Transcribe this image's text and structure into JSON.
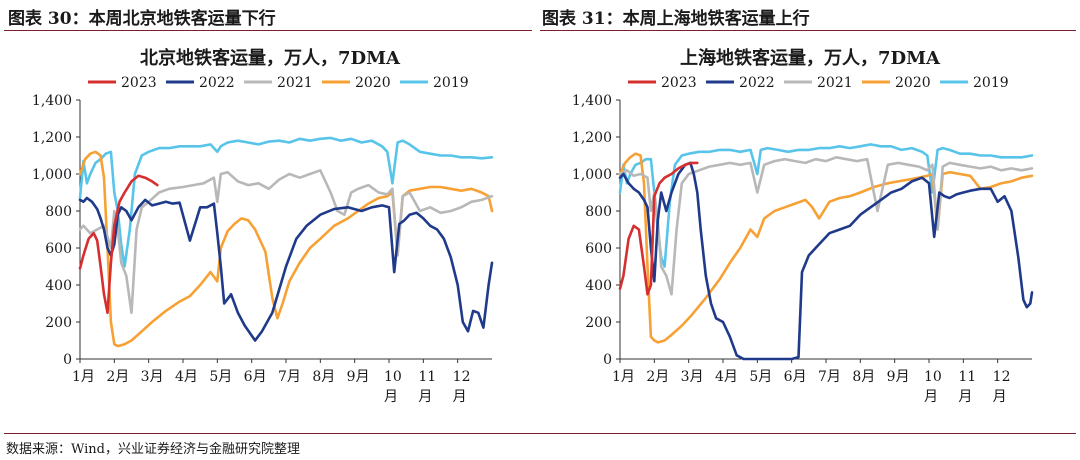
{
  "figures": {
    "left_label": "图表 30：本周北京地铁客运量下行",
    "right_label": "图表 31：本周上海地铁客运量上行"
  },
  "source": "数据来源：Wind，兴业证券经济与金融研究院整理",
  "chart_data": [
    {
      "type": "line",
      "title": "北京地铁客运量，万人，7DMA",
      "ylim": [
        0,
        1400
      ],
      "yticks": [
        0,
        200,
        400,
        600,
        800,
        1000,
        1200,
        1400
      ],
      "ytick_labels": [
        "0",
        "200",
        "400",
        "600",
        "800",
        "1,000",
        "1,200",
        "1,400"
      ],
      "xlim": [
        1,
        13
      ],
      "xticks": [
        1,
        2,
        3,
        4,
        5,
        6,
        7,
        8,
        9,
        10,
        11,
        12
      ],
      "xtick_labels": [
        "1月",
        "2月",
        "3月",
        "4月",
        "5月",
        "6月",
        "7月",
        "8月",
        "9月",
        "10\n月",
        "11\n月",
        "12\n月"
      ],
      "legend": "top",
      "series": [
        {
          "name": "2023",
          "color": "#d62f2f",
          "x": [
            1.0,
            1.1,
            1.25,
            1.4,
            1.5,
            1.6,
            1.7,
            1.8,
            1.9,
            2.0,
            2.15,
            2.3,
            2.5,
            2.7,
            2.9,
            3.1,
            3.25
          ],
          "y": [
            490,
            560,
            650,
            680,
            640,
            500,
            350,
            250,
            520,
            720,
            850,
            900,
            960,
            990,
            980,
            960,
            940
          ]
        },
        {
          "name": "2022",
          "color": "#1f3a8a",
          "x": [
            1.0,
            1.1,
            1.2,
            1.35,
            1.5,
            1.6,
            1.7,
            1.8,
            1.9,
            2.0,
            2.1,
            2.2,
            2.35,
            2.5,
            2.7,
            2.9,
            3.1,
            3.3,
            3.5,
            3.7,
            3.9,
            4.2,
            4.5,
            4.7,
            4.9,
            5.0,
            5.1,
            5.2,
            5.4,
            5.6,
            5.8,
            5.95,
            6.1,
            6.3,
            6.6,
            7.0,
            7.3,
            7.6,
            8.0,
            8.4,
            8.8,
            9.2,
            9.5,
            9.8,
            10.0,
            10.15,
            10.3,
            10.45,
            10.6,
            10.8,
            11.0,
            11.2,
            11.4,
            11.6,
            11.8,
            12.0,
            12.15,
            12.3,
            12.45,
            12.6,
            12.75,
            12.9,
            13.0
          ],
          "y": [
            860,
            850,
            870,
            850,
            810,
            760,
            700,
            600,
            560,
            620,
            780,
            820,
            800,
            750,
            820,
            860,
            830,
            840,
            850,
            840,
            845,
            640,
            820,
            820,
            840,
            680,
            500,
            300,
            350,
            250,
            180,
            140,
            100,
            150,
            250,
            500,
            650,
            720,
            780,
            810,
            820,
            800,
            820,
            830,
            820,
            470,
            730,
            750,
            780,
            790,
            760,
            720,
            700,
            650,
            550,
            400,
            200,
            150,
            260,
            250,
            170,
            400,
            520
          ]
        },
        {
          "name": "2021",
          "color": "#b8b8b8",
          "x": [
            1.0,
            1.1,
            1.3,
            1.5,
            1.7,
            1.9,
            2.0,
            2.1,
            2.2,
            2.35,
            2.5,
            2.65,
            2.8,
            3.0,
            3.3,
            3.6,
            4.0,
            4.3,
            4.6,
            4.9,
            5.0,
            5.1,
            5.3,
            5.6,
            5.9,
            6.2,
            6.5,
            6.8,
            7.1,
            7.4,
            7.7,
            8.0,
            8.3,
            8.5,
            8.7,
            8.9,
            9.1,
            9.4,
            9.7,
            9.95,
            10.1,
            10.25,
            10.4,
            10.6,
            10.9,
            11.2,
            11.5,
            11.8,
            12.1,
            12.4,
            12.7,
            13.0
          ],
          "y": [
            700,
            720,
            680,
            700,
            720,
            600,
            800,
            700,
            520,
            450,
            250,
            700,
            820,
            850,
            900,
            920,
            930,
            940,
            950,
            980,
            850,
            1000,
            1010,
            960,
            940,
            950,
            920,
            970,
            1000,
            980,
            1000,
            1020,
            900,
            800,
            780,
            900,
            920,
            940,
            900,
            890,
            920,
            560,
            880,
            900,
            800,
            820,
            790,
            800,
            820,
            850,
            860,
            880
          ]
        },
        {
          "name": "2020",
          "color": "#f7a134",
          "x": [
            1.0,
            1.15,
            1.3,
            1.45,
            1.6,
            1.7,
            1.8,
            1.9,
            2.0,
            2.1,
            2.3,
            2.5,
            2.8,
            3.1,
            3.5,
            3.9,
            4.2,
            4.5,
            4.8,
            5.0,
            5.1,
            5.3,
            5.5,
            5.7,
            5.9,
            6.1,
            6.4,
            6.6,
            6.75,
            6.9,
            7.1,
            7.4,
            7.7,
            8.0,
            8.4,
            8.8,
            9.1,
            9.4,
            9.7,
            9.95,
            10.1,
            10.25,
            10.4,
            10.6,
            10.9,
            11.2,
            11.5,
            11.8,
            12.1,
            12.4,
            12.7,
            12.9,
            13.0
          ],
          "y": [
            1000,
            1080,
            1110,
            1120,
            1100,
            980,
            600,
            200,
            80,
            70,
            80,
            100,
            150,
            200,
            260,
            310,
            340,
            400,
            470,
            420,
            600,
            690,
            730,
            760,
            750,
            700,
            580,
            330,
            220,
            300,
            420,
            520,
            600,
            650,
            720,
            760,
            800,
            840,
            870,
            880,
            900,
            570,
            880,
            910,
            920,
            930,
            930,
            920,
            910,
            920,
            900,
            880,
            800
          ]
        },
        {
          "name": "2019",
          "color": "#58c4ea",
          "x": [
            1.0,
            1.1,
            1.2,
            1.3,
            1.45,
            1.6,
            1.75,
            1.9,
            2.0,
            2.1,
            2.2,
            2.3,
            2.45,
            2.6,
            2.8,
            3.0,
            3.3,
            3.6,
            3.9,
            4.2,
            4.5,
            4.8,
            5.0,
            5.1,
            5.3,
            5.6,
            5.9,
            6.2,
            6.5,
            6.8,
            7.1,
            7.4,
            7.7,
            8.0,
            8.3,
            8.6,
            8.9,
            9.2,
            9.5,
            9.8,
            9.95,
            10.1,
            10.25,
            10.4,
            10.6,
            10.9,
            11.2,
            11.5,
            11.8,
            12.1,
            12.4,
            12.7,
            13.0
          ],
          "y": [
            870,
            1070,
            950,
            1000,
            1060,
            1080,
            1110,
            1120,
            900,
            800,
            620,
            500,
            700,
            1000,
            1100,
            1120,
            1140,
            1140,
            1150,
            1150,
            1150,
            1160,
            1120,
            1150,
            1170,
            1180,
            1170,
            1160,
            1175,
            1180,
            1170,
            1190,
            1180,
            1190,
            1195,
            1180,
            1190,
            1170,
            1180,
            1150,
            1120,
            950,
            1170,
            1180,
            1160,
            1120,
            1110,
            1100,
            1100,
            1090,
            1090,
            1085,
            1090
          ]
        }
      ]
    },
    {
      "type": "line",
      "title": "上海地铁客运量，万人，7DMA",
      "ylim": [
        0,
        1400
      ],
      "yticks": [
        0,
        200,
        400,
        600,
        800,
        1000,
        1200,
        1400
      ],
      "ytick_labels": [
        "0",
        "200",
        "400",
        "600",
        "800",
        "1,000",
        "1,200",
        "1,400"
      ],
      "xlim": [
        1,
        13
      ],
      "xticks": [
        1,
        2,
        3,
        4,
        5,
        6,
        7,
        8,
        9,
        10,
        11,
        12
      ],
      "xtick_labels": [
        "1月",
        "2月",
        "3月",
        "4月",
        "5月",
        "6月",
        "7月",
        "8月",
        "9月",
        "10\n月",
        "11\n月",
        "12\n月"
      ],
      "legend": "top",
      "series": [
        {
          "name": "2023",
          "color": "#d62f2f",
          "x": [
            1.0,
            1.1,
            1.25,
            1.4,
            1.55,
            1.7,
            1.8,
            1.9,
            2.0,
            2.15,
            2.3,
            2.5,
            2.7,
            2.9,
            3.1,
            3.25
          ],
          "y": [
            380,
            450,
            650,
            720,
            700,
            500,
            350,
            400,
            880,
            950,
            980,
            1000,
            1030,
            1050,
            1060,
            1060
          ]
        },
        {
          "name": "2022",
          "color": "#1f3a8a",
          "x": [
            1.0,
            1.1,
            1.25,
            1.4,
            1.55,
            1.7,
            1.8,
            1.9,
            2.0,
            2.1,
            2.2,
            2.35,
            2.5,
            2.7,
            2.9,
            3.05,
            3.15,
            3.25,
            3.35,
            3.5,
            3.65,
            3.8,
            4.0,
            4.2,
            4.4,
            4.6,
            5.0,
            5.5,
            6.0,
            6.2,
            6.3,
            6.5,
            6.8,
            7.1,
            7.4,
            7.7,
            8.0,
            8.3,
            8.6,
            8.9,
            9.2,
            9.5,
            9.8,
            10.0,
            10.15,
            10.3,
            10.45,
            10.6,
            10.8,
            11.0,
            11.2,
            11.5,
            11.8,
            12.0,
            12.2,
            12.4,
            12.6,
            12.75,
            12.85,
            12.95,
            13.0
          ],
          "y": [
            980,
            1000,
            950,
            920,
            900,
            860,
            820,
            600,
            420,
            750,
            900,
            800,
            900,
            1000,
            1050,
            1060,
            1000,
            900,
            700,
            450,
            300,
            220,
            200,
            120,
            20,
            0,
            0,
            0,
            0,
            10,
            470,
            560,
            620,
            680,
            700,
            720,
            780,
            820,
            860,
            900,
            920,
            960,
            980,
            950,
            660,
            900,
            880,
            870,
            890,
            900,
            910,
            920,
            920,
            850,
            880,
            800,
            550,
            320,
            280,
            300,
            360
          ]
        },
        {
          "name": "2021",
          "color": "#b8b8b8",
          "x": [
            1.0,
            1.2,
            1.4,
            1.6,
            1.8,
            1.9,
            2.0,
            2.1,
            2.2,
            2.35,
            2.5,
            2.65,
            2.8,
            3.0,
            3.3,
            3.6,
            3.9,
            4.2,
            4.5,
            4.8,
            5.0,
            5.2,
            5.5,
            5.8,
            6.1,
            6.4,
            6.7,
            7.0,
            7.3,
            7.6,
            7.9,
            8.2,
            8.5,
            8.8,
            9.1,
            9.4,
            9.7,
            9.95,
            10.1,
            10.25,
            10.4,
            10.6,
            10.9,
            11.2,
            11.5,
            11.8,
            12.1,
            12.4,
            12.7,
            13.0
          ],
          "y": [
            1000,
            1020,
            990,
            1000,
            980,
            800,
            900,
            750,
            500,
            450,
            350,
            700,
            950,
            1000,
            1020,
            1040,
            1050,
            1060,
            1050,
            1060,
            900,
            1050,
            1070,
            1080,
            1070,
            1060,
            1080,
            1070,
            1090,
            1080,
            1070,
            1080,
            800,
            1050,
            1060,
            1050,
            1040,
            1020,
            1050,
            700,
            1040,
            1060,
            1050,
            1040,
            1030,
            1040,
            1020,
            1030,
            1020,
            1030
          ]
        },
        {
          "name": "2020",
          "color": "#f7a134",
          "x": [
            1.0,
            1.15,
            1.3,
            1.45,
            1.6,
            1.7,
            1.8,
            1.9,
            2.0,
            2.1,
            2.3,
            2.5,
            2.8,
            3.1,
            3.5,
            3.9,
            4.2,
            4.5,
            4.8,
            5.0,
            5.2,
            5.5,
            5.8,
            6.1,
            6.4,
            6.6,
            6.8,
            7.1,
            7.4,
            7.7,
            8.0,
            8.4,
            8.8,
            9.1,
            9.4,
            9.7,
            9.95,
            10.1,
            10.25,
            10.4,
            10.6,
            10.9,
            11.2,
            11.5,
            11.8,
            12.1,
            12.4,
            12.7,
            13.0
          ],
          "y": [
            1000,
            1060,
            1090,
            1110,
            1100,
            950,
            500,
            120,
            100,
            90,
            100,
            130,
            180,
            240,
            330,
            430,
            520,
            600,
            700,
            660,
            760,
            800,
            820,
            840,
            860,
            820,
            760,
            850,
            870,
            880,
            900,
            930,
            950,
            960,
            970,
            980,
            990,
            1000,
            700,
            1000,
            1010,
            1000,
            990,
            920,
            930,
            950,
            960,
            980,
            990
          ]
        },
        {
          "name": "2019",
          "color": "#58c4ea",
          "x": [
            1.0,
            1.1,
            1.2,
            1.3,
            1.45,
            1.6,
            1.75,
            1.9,
            2.0,
            2.1,
            2.2,
            2.3,
            2.45,
            2.6,
            2.8,
            3.0,
            3.3,
            3.6,
            3.9,
            4.2,
            4.5,
            4.8,
            5.0,
            5.1,
            5.3,
            5.6,
            5.9,
            6.2,
            6.5,
            6.8,
            7.1,
            7.4,
            7.7,
            8.0,
            8.3,
            8.6,
            8.9,
            9.2,
            9.5,
            9.8,
            9.95,
            10.1,
            10.25,
            10.4,
            10.6,
            10.9,
            11.2,
            11.5,
            11.8,
            12.1,
            12.4,
            12.7,
            13.0
          ],
          "y": [
            900,
            1050,
            950,
            1000,
            1050,
            1060,
            1080,
            1080,
            900,
            700,
            550,
            500,
            850,
            1050,
            1100,
            1110,
            1120,
            1120,
            1130,
            1130,
            1120,
            1130,
            1000,
            1130,
            1140,
            1130,
            1120,
            1130,
            1130,
            1140,
            1140,
            1150,
            1140,
            1150,
            1160,
            1150,
            1150,
            1130,
            1140,
            1120,
            1100,
            900,
            1130,
            1140,
            1130,
            1110,
            1110,
            1100,
            1100,
            1090,
            1090,
            1090,
            1100
          ]
        }
      ]
    }
  ]
}
